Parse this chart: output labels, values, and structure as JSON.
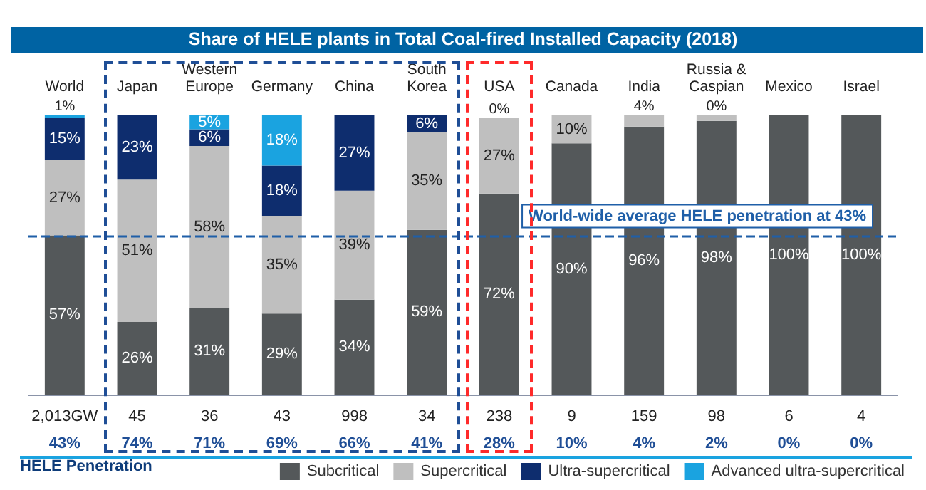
{
  "chart_data": {
    "type": "bar",
    "title": "Share of HELE plants in Total Coal-fired Installed Capacity (2018)",
    "categories": [
      "World",
      "Japan",
      "Western\nEurope",
      "Germany",
      "China",
      "South\nKorea",
      "USA",
      "Canada",
      "India",
      "Russia &\nCaspian",
      "Mexico",
      "Israel"
    ],
    "stacked": true,
    "ylim": [
      0,
      100
    ],
    "tick_labels": "x",
    "legend": "bottom right",
    "series": [
      {
        "name": "Subcritical",
        "color": "#54585a",
        "values": [
          57,
          26,
          31,
          29,
          34,
          59,
          72,
          90,
          96,
          98,
          100,
          100
        ],
        "value_labels": [
          "57%",
          "26%",
          "31%",
          "29%",
          "34%",
          "59%",
          "72%",
          "90%",
          "96%",
          "98%",
          "100%",
          "100%"
        ]
      },
      {
        "name": "Supercritical",
        "color": "#bfbfbf",
        "values": [
          27,
          51,
          58,
          35,
          39,
          35,
          27,
          10,
          4,
          2,
          0,
          0
        ],
        "value_labels": [
          "27%",
          "51%",
          "58%",
          "35%",
          "39%",
          "35%",
          "27%",
          "10%",
          "4%",
          null,
          null,
          null
        ]
      },
      {
        "name": "Ultra-supercritical",
        "color": "#0e2d6e",
        "values": [
          15,
          23,
          6,
          18,
          27,
          6,
          0,
          0,
          0,
          0,
          0,
          0
        ],
        "value_labels": [
          "15%",
          "23%",
          "6%",
          "18%",
          "27%",
          "6%",
          "0%",
          null,
          null,
          null,
          null,
          null
        ]
      },
      {
        "name": "Advanced ultra-supercritical",
        "color": "#1aa3e0",
        "values": [
          1,
          0,
          5,
          18,
          0,
          0,
          0,
          0,
          0,
          0,
          0,
          0
        ],
        "value_labels": [
          "1%",
          null,
          "5%",
          "18%",
          null,
          null,
          null,
          null,
          null,
          "0%",
          null,
          null
        ]
      }
    ],
    "ref_lines": [
      {
        "axis": "y",
        "value": 57,
        "label": "World-wide average HELE penetration at 43%",
        "color": "#1f5fa8",
        "line_style": "dashed"
      }
    ],
    "annotations": [
      "2,013GW",
      "45",
      "36",
      "43",
      "998",
      "34",
      "238",
      "9",
      "159",
      "98",
      "6",
      "4",
      "43%",
      "74%",
      "71%",
      "69%",
      "66%",
      "41%",
      "28%",
      "10%",
      "4%",
      "2%",
      "0%",
      "0%",
      "HELE Penetration"
    ]
  }
}
